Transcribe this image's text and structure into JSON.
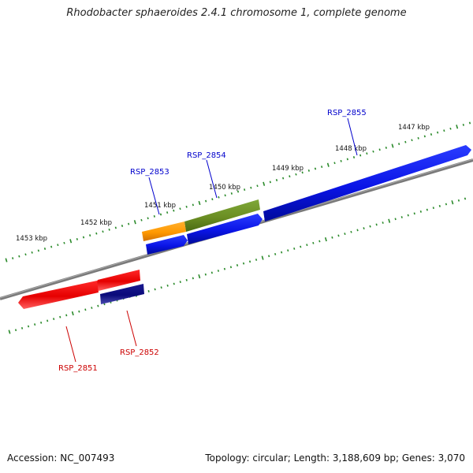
{
  "title": "Rhodobacter sphaeroides 2.4.1 chromosome 1, complete genome",
  "footer": {
    "accession": "Accession: NC_007493",
    "summary": "Topology: circular; Length: 3,188,609 bp; Genes: 3,070"
  },
  "ticks": [
    {
      "label": "1447 kbp"
    },
    {
      "label": "1448 kbp"
    },
    {
      "label": "1449 kbp"
    },
    {
      "label": "1450 kbp"
    },
    {
      "label": "1451 kbp"
    },
    {
      "label": "1452 kbp"
    },
    {
      "label": "1453 kbp"
    }
  ],
  "genes": [
    {
      "label": "RSP_2855",
      "color": "#0000cc"
    },
    {
      "label": "RSP_2854",
      "color": "#0000cc"
    },
    {
      "label": "RSP_2853",
      "color": "#0000cc"
    },
    {
      "label": "RSP_2852",
      "color": "#cc0000"
    },
    {
      "label": "RSP_2851",
      "color": "#cc0000"
    }
  ],
  "colors": {
    "backbone": "#808080",
    "tick": "#2a8a2a",
    "forward_feature": "#0a14e6",
    "forward_feature_alt": "#6b8e23",
    "forward_feature_orange": "#ff9900",
    "reverse_feature": "#e60000",
    "reverse_feature_dark": "#0a0a7a"
  }
}
